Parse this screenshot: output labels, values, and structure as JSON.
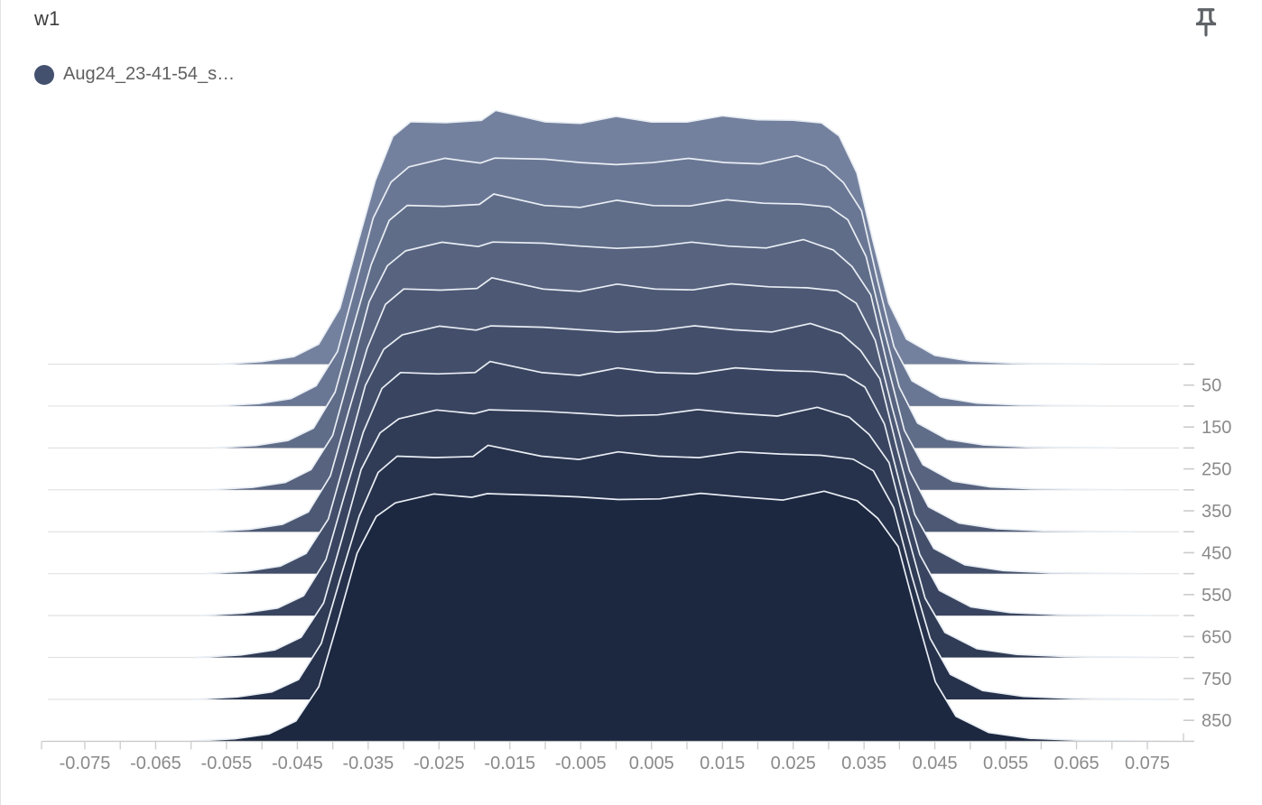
{
  "card": {
    "title": "w1"
  },
  "legend": {
    "items": [
      {
        "label": "Aug24_23-41-54_s…",
        "color": "#44516e"
      }
    ]
  },
  "toolbar": {
    "pin_icon": "push-pin",
    "pin_color": "#5f6368"
  },
  "chart_data": {
    "type": "area",
    "variant": "tensorboard-histogram-offset-ridgeline",
    "title": "w1",
    "run": "Aug24_23-41-54_s…",
    "legend_position": "top-left",
    "grid": true,
    "grid_color": "#e2e2e2",
    "axis_color": "#c9c9c9",
    "tick_color": "#cccccc",
    "tick_label_color": "#8a8a8a",
    "ridge_stroke": "#e9eef4",
    "x_axis": {
      "min": -0.08,
      "max": 0.08,
      "minor_tick_step": 0.005,
      "labels": [
        {
          "value": -0.075,
          "label": "-0.075"
        },
        {
          "value": -0.065,
          "label": "-0.065"
        },
        {
          "value": -0.055,
          "label": "-0.055"
        },
        {
          "value": -0.045,
          "label": "-0.045"
        },
        {
          "value": -0.035,
          "label": "-0.035"
        },
        {
          "value": -0.025,
          "label": "-0.025"
        },
        {
          "value": -0.015,
          "label": "-0.015"
        },
        {
          "value": -0.005,
          "label": "-0.005"
        },
        {
          "value": 0.005,
          "label": "0.005"
        },
        {
          "value": 0.015,
          "label": "0.015"
        },
        {
          "value": 0.025,
          "label": "0.025"
        },
        {
          "value": 0.035,
          "label": "0.035"
        },
        {
          "value": 0.045,
          "label": "0.045"
        },
        {
          "value": 0.055,
          "label": "0.055"
        },
        {
          "value": 0.065,
          "label": "0.065"
        },
        {
          "value": 0.075,
          "label": "0.075"
        }
      ]
    },
    "y_axis": {
      "side": "right",
      "min": 0,
      "max": 900,
      "tick_step": 50,
      "labels": [
        {
          "value": 50,
          "label": "50"
        },
        {
          "value": 150,
          "label": "150"
        },
        {
          "value": 250,
          "label": "250"
        },
        {
          "value": 350,
          "label": "350"
        },
        {
          "value": 450,
          "label": "450"
        },
        {
          "value": 550,
          "label": "550"
        },
        {
          "value": 650,
          "label": "650"
        },
        {
          "value": 750,
          "label": "750"
        },
        {
          "value": 850,
          "label": "850"
        }
      ]
    },
    "bin_centers": [
      -0.056,
      -0.05,
      -0.0455,
      -0.042,
      -0.039,
      -0.0365,
      -0.034,
      -0.0315,
      -0.029,
      -0.024,
      -0.019,
      -0.017,
      -0.01,
      -0.005,
      0.0,
      0.005,
      0.01,
      0.015,
      0.02,
      0.025,
      0.029,
      0.0315,
      0.034,
      0.0362,
      0.0385,
      0.041,
      0.045,
      0.05,
      0.056,
      0.068
    ],
    "base_heights": [
      0.0,
      0.01,
      0.03,
      0.08,
      0.22,
      0.48,
      0.74,
      0.9,
      0.96,
      0.975,
      0.97,
      1.0,
      0.975,
      0.965,
      0.975,
      0.968,
      0.976,
      0.98,
      0.97,
      0.985,
      0.958,
      0.9,
      0.77,
      0.5,
      0.24,
      0.1,
      0.035,
      0.012,
      0.004,
      0.0
    ],
    "spread_center": -0.002,
    "series": [
      {
        "step": 0,
        "color": "#74819e",
        "spread_left": 1.0,
        "spread_right": 1.0
      },
      {
        "step": 100,
        "color": "#6a7794",
        "spread_left": 1.009,
        "spread_right": 1.018
      },
      {
        "step": 200,
        "color": "#606d89",
        "spread_left": 1.018,
        "spread_right": 1.036
      },
      {
        "step": 300,
        "color": "#57637f",
        "spread_left": 1.027,
        "spread_right": 1.054
      },
      {
        "step": 400,
        "color": "#4d5974",
        "spread_left": 1.036,
        "spread_right": 1.072
      },
      {
        "step": 500,
        "color": "#434f6a",
        "spread_left": 1.044,
        "spread_right": 1.09
      },
      {
        "step": 600,
        "color": "#394560",
        "spread_left": 1.053,
        "spread_right": 1.108
      },
      {
        "step": 700,
        "color": "#303b55",
        "spread_left": 1.062,
        "spread_right": 1.126
      },
      {
        "step": 800,
        "color": "#26314b",
        "spread_left": 1.071,
        "spread_right": 1.144
      },
      {
        "step": 900,
        "color": "#1c2740",
        "spread_left": 1.08,
        "spread_right": 1.162
      }
    ]
  }
}
